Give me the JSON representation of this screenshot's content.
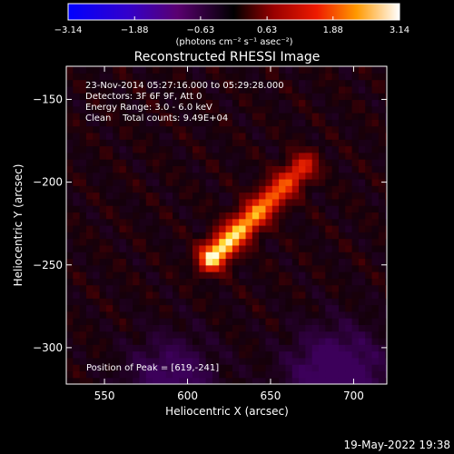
{
  "chart_data": {
    "type": "heatmap",
    "title": "Reconstructed RHESSI Image",
    "xlabel": "Heliocentric X (arcsec)",
    "ylabel": "Heliocentric Y (arcsec)",
    "xlim": [
      527,
      720
    ],
    "ylim": [
      -322,
      -130
    ],
    "x_ticks": [
      550,
      600,
      650,
      700
    ],
    "y_ticks": [
      -300,
      -250,
      -200,
      -150
    ],
    "x_tick_labels": [
      "550",
      "600",
      "650",
      "700"
    ],
    "y_tick_labels": [
      "−300",
      "−250",
      "−200",
      "−150"
    ],
    "colorbar": {
      "min": -3.14,
      "max": 3.14,
      "ticks": [
        -3.14,
        -1.88,
        -0.63,
        0.63,
        1.88,
        3.14
      ],
      "tick_labels": [
        "−3.14",
        "−1.88",
        "−0.63",
        "0.63",
        "1.88",
        "3.14"
      ],
      "label": "(photons cm⁻² s⁻¹ asec⁻²)"
    },
    "source": {
      "peak": [
        619,
        -241
      ],
      "end": [
        670,
        -190
      ],
      "description_values": "elongated bright source from (619,-241) toward (670,-190)"
    },
    "annotations": {
      "line1": "23-Nov-2014 05:27:16.000 to 05:29:28.000",
      "line2": "Detectors: 3F 6F 9F, Att 0",
      "line3": "Energy Range: 3.0 - 6.0 keV",
      "line4": "Clean    Total counts: 9.49E+04",
      "peak_text": "Position of Peak = [619,-241]"
    },
    "timestamp": "19-May-2022 19:38"
  }
}
